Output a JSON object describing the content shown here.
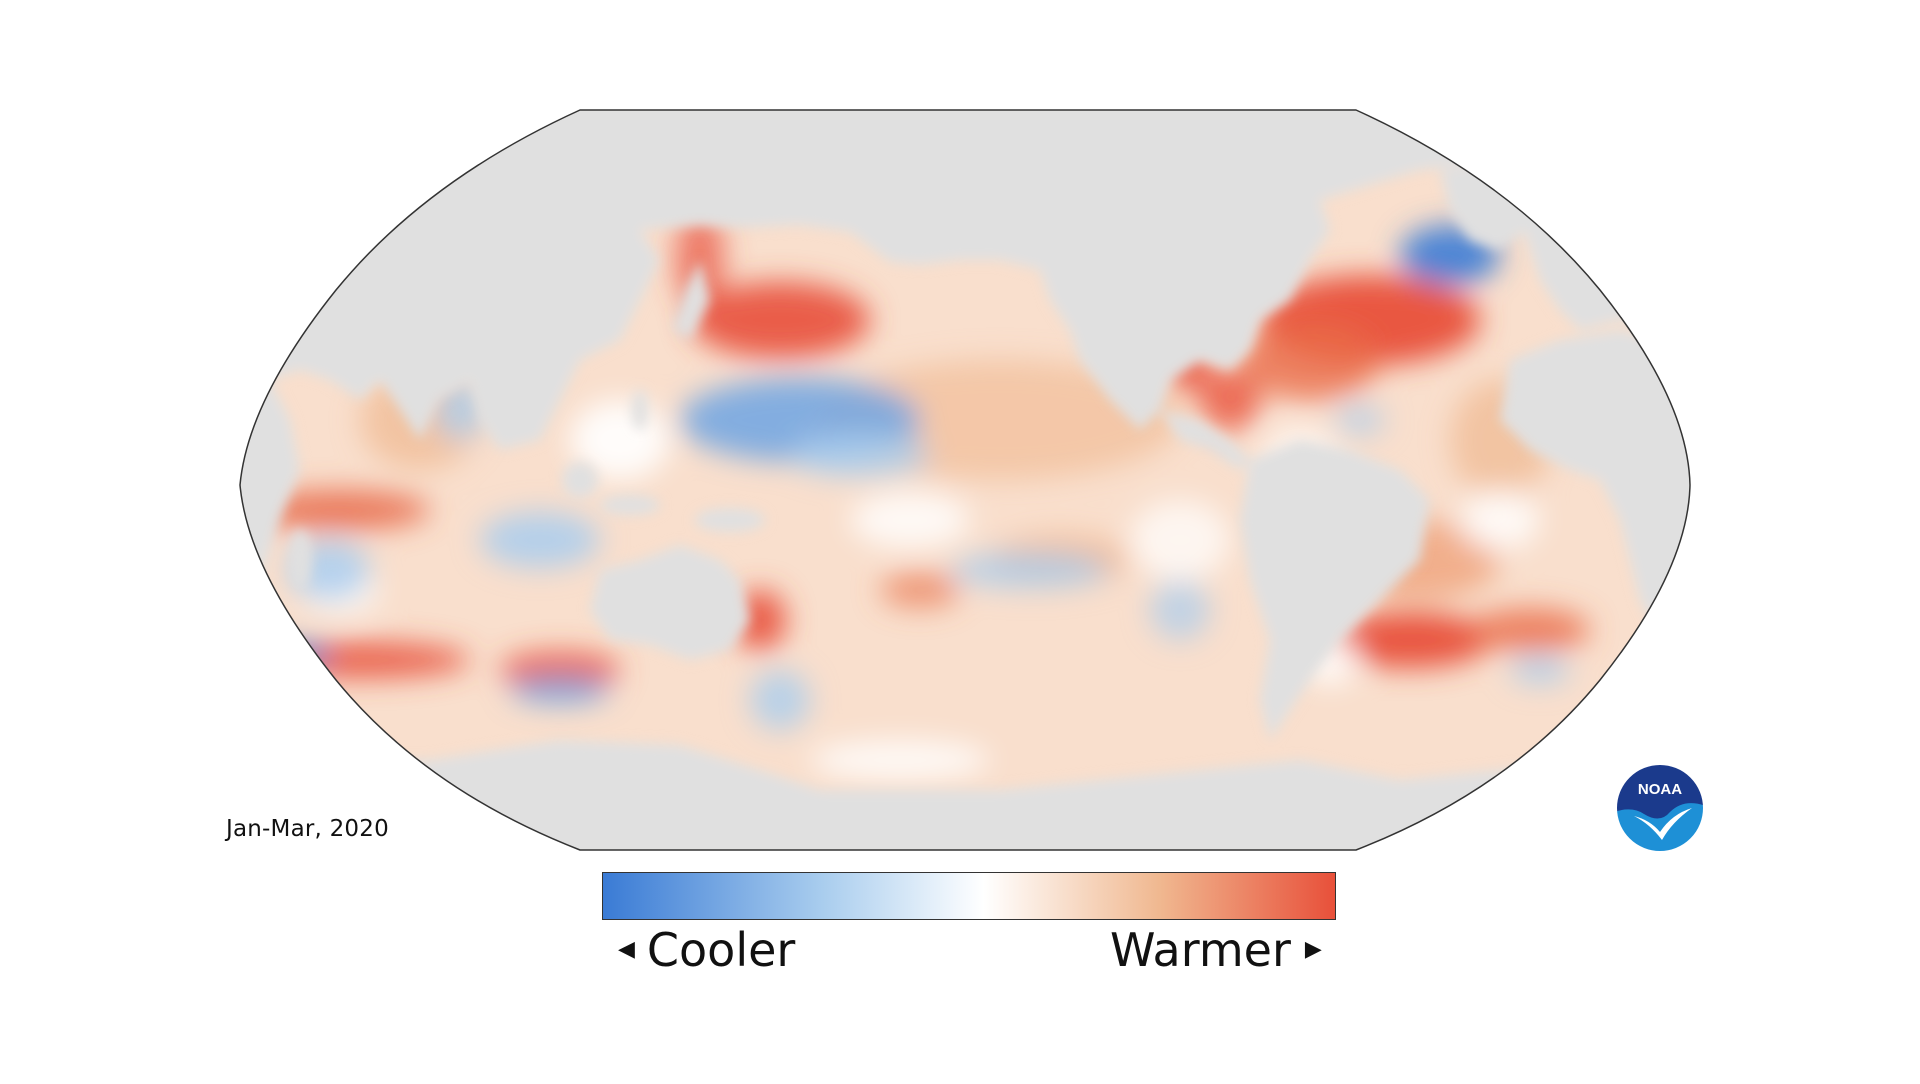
{
  "map": {
    "period": "Jan-Mar, 2020",
    "projection": "robinson",
    "land_color": "#e0e0e0",
    "outline_color": "#333333"
  },
  "legend": {
    "cool_label": "Cooler",
    "warm_label": "Warmer",
    "colors": {
      "cold": "#3a7bd5",
      "cool": "#a9cdee",
      "neutral": "#ffffff",
      "warm": "#f0b890",
      "hot": "#e8503a"
    }
  },
  "logo": {
    "text": "NOAA",
    "icon": "noaa-logo-icon",
    "colors": {
      "top": "#1b3a8c",
      "bottom": "#1e90d6",
      "bird": "#ffffff"
    }
  }
}
